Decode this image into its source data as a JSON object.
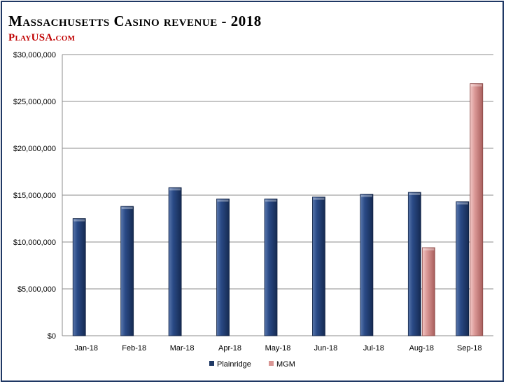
{
  "title": "Massachusetts Casino revenue - 2018",
  "subtitle": "PlayUSA.com",
  "colors": {
    "Plainridge": "#1f3864",
    "MGM": "#d99694",
    "frame": "#1f3864"
  },
  "chart_data": {
    "type": "bar",
    "categories": [
      "Jan-18",
      "Feb-18",
      "Mar-18",
      "Apr-18",
      "May-18",
      "Jun-18",
      "Jul-18",
      "Aug-18",
      "Sep-18"
    ],
    "series": [
      {
        "name": "Plainridge",
        "values": [
          12500000,
          13800000,
          15800000,
          14600000,
          14600000,
          14800000,
          15100000,
          15300000,
          14300000
        ]
      },
      {
        "name": "MGM",
        "values": [
          null,
          null,
          null,
          null,
          null,
          null,
          null,
          9400000,
          26900000
        ]
      }
    ],
    "ylim": [
      0,
      30000000
    ],
    "yticks": [
      "$0",
      "$5,000,000",
      "$10,000,000",
      "$15,000,000",
      "$20,000,000",
      "$25,000,000",
      "$30,000,000"
    ],
    "ytick_values": [
      0,
      5000000,
      10000000,
      15000000,
      20000000,
      25000000,
      30000000
    ],
    "grid": true,
    "legend": "bottom-center"
  }
}
